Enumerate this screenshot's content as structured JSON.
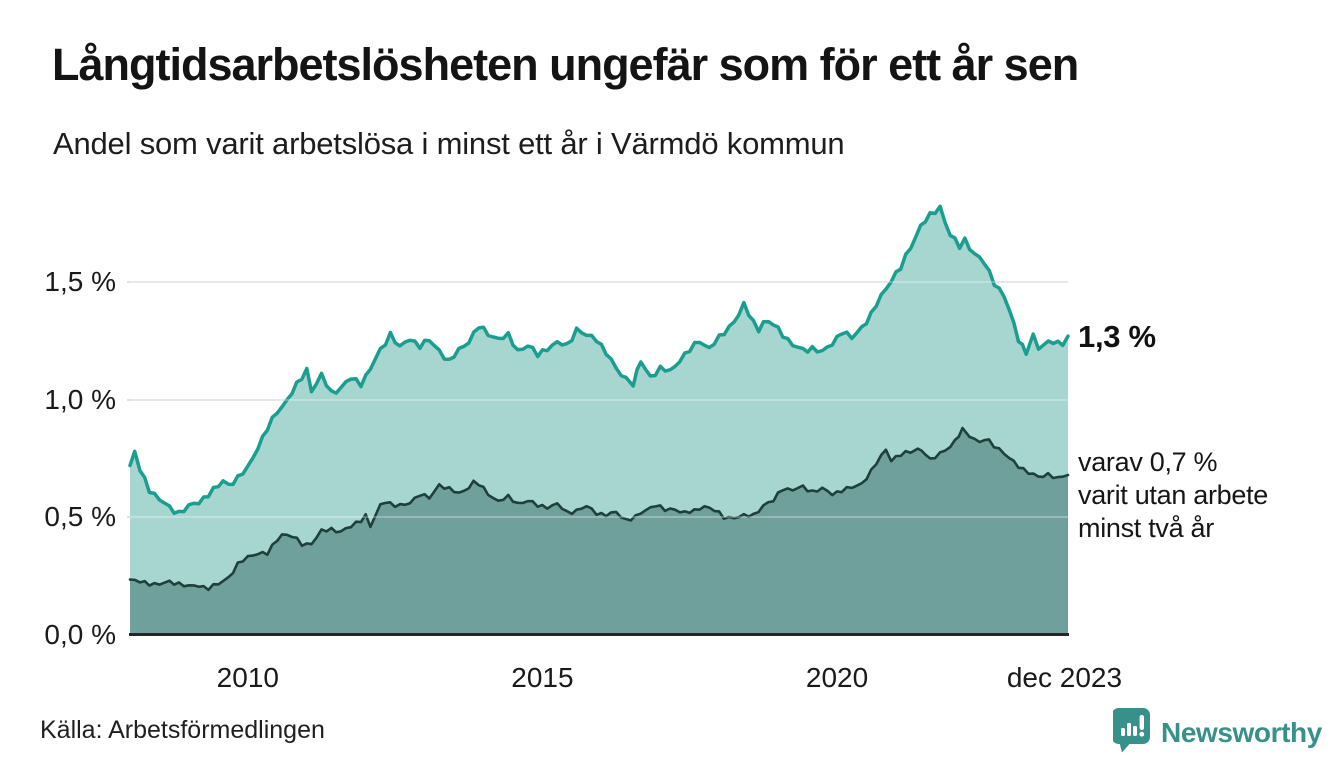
{
  "header": {
    "title": "Långtidsarbetslösheten ungefär som för ett år sen",
    "subtitle": "Andel som varit arbetslösa i minst ett år i Värmdö kommun"
  },
  "chart_data": {
    "type": "area",
    "title": "Långtidsarbetslösheten ungefär som för ett år sen",
    "subtitle": "Andel som varit arbetslösa i minst ett år i Värmdö kommun",
    "unit": "%",
    "grid": true,
    "x_range": [
      2008.0,
      2023.92
    ],
    "ylim": [
      0,
      1.85
    ],
    "y_ticks": [
      {
        "label": "1,5 %",
        "value": 1.5
      },
      {
        "label": "1,0 %",
        "value": 1.0
      },
      {
        "label": "0,5 %",
        "value": 0.5
      },
      {
        "label": "0,0 %",
        "value": 0.0
      }
    ],
    "x_ticks": [
      {
        "label": "2010",
        "value": 2010
      },
      {
        "label": "2015",
        "value": 2015
      },
      {
        "label": "2020",
        "value": 2020
      },
      {
        "label": "dec 2023",
        "value": 2023.86
      }
    ],
    "series": [
      {
        "name": "Arbetslösa minst ett år",
        "end_label": "1,3 %",
        "end_value": 1.3,
        "line_color": "#1b9e8f",
        "fill_color": "#a7d6d0",
        "points": [
          [
            2008.0,
            0.72
          ],
          [
            2008.08,
            0.775
          ],
          [
            2008.17,
            0.7
          ],
          [
            2008.33,
            0.62
          ],
          [
            2008.5,
            0.575
          ],
          [
            2008.67,
            0.54
          ],
          [
            2008.83,
            0.52
          ],
          [
            2009.0,
            0.545
          ],
          [
            2009.17,
            0.565
          ],
          [
            2009.33,
            0.6
          ],
          [
            2009.5,
            0.63
          ],
          [
            2009.58,
            0.655
          ],
          [
            2009.67,
            0.64
          ],
          [
            2009.83,
            0.665
          ],
          [
            2010.0,
            0.71
          ],
          [
            2010.17,
            0.8
          ],
          [
            2010.33,
            0.875
          ],
          [
            2010.5,
            0.95
          ],
          [
            2010.67,
            1.0
          ],
          [
            2010.83,
            1.06
          ],
          [
            2011.0,
            1.13
          ],
          [
            2011.08,
            1.04
          ],
          [
            2011.25,
            1.1
          ],
          [
            2011.42,
            1.03
          ],
          [
            2011.58,
            1.05
          ],
          [
            2011.75,
            1.09
          ],
          [
            2011.92,
            1.07
          ],
          [
            2012.08,
            1.13
          ],
          [
            2012.25,
            1.21
          ],
          [
            2012.42,
            1.28
          ],
          [
            2012.58,
            1.22
          ],
          [
            2012.75,
            1.26
          ],
          [
            2012.92,
            1.23
          ],
          [
            2013.08,
            1.25
          ],
          [
            2013.25,
            1.21
          ],
          [
            2013.42,
            1.16
          ],
          [
            2013.58,
            1.21
          ],
          [
            2013.75,
            1.25
          ],
          [
            2013.92,
            1.31
          ],
          [
            2014.08,
            1.28
          ],
          [
            2014.25,
            1.26
          ],
          [
            2014.42,
            1.27
          ],
          [
            2014.58,
            1.21
          ],
          [
            2014.75,
            1.23
          ],
          [
            2014.92,
            1.19
          ],
          [
            2015.08,
            1.22
          ],
          [
            2015.25,
            1.24
          ],
          [
            2015.42,
            1.23
          ],
          [
            2015.58,
            1.3
          ],
          [
            2015.75,
            1.27
          ],
          [
            2015.92,
            1.26
          ],
          [
            2016.08,
            1.2
          ],
          [
            2016.25,
            1.13
          ],
          [
            2016.42,
            1.09
          ],
          [
            2016.54,
            1.07
          ],
          [
            2016.67,
            1.16
          ],
          [
            2016.83,
            1.1
          ],
          [
            2017.0,
            1.13
          ],
          [
            2017.17,
            1.12
          ],
          [
            2017.33,
            1.17
          ],
          [
            2017.5,
            1.21
          ],
          [
            2017.67,
            1.25
          ],
          [
            2017.83,
            1.22
          ],
          [
            2018.0,
            1.26
          ],
          [
            2018.17,
            1.31
          ],
          [
            2018.33,
            1.36
          ],
          [
            2018.42,
            1.4
          ],
          [
            2018.58,
            1.33
          ],
          [
            2018.67,
            1.3
          ],
          [
            2018.75,
            1.33
          ],
          [
            2018.92,
            1.32
          ],
          [
            2019.08,
            1.28
          ],
          [
            2019.25,
            1.23
          ],
          [
            2019.42,
            1.21
          ],
          [
            2019.58,
            1.22
          ],
          [
            2019.75,
            1.2
          ],
          [
            2019.92,
            1.24
          ],
          [
            2020.08,
            1.29
          ],
          [
            2020.25,
            1.26
          ],
          [
            2020.42,
            1.31
          ],
          [
            2020.58,
            1.36
          ],
          [
            2020.75,
            1.44
          ],
          [
            2020.92,
            1.51
          ],
          [
            2021.08,
            1.56
          ],
          [
            2021.25,
            1.65
          ],
          [
            2021.42,
            1.74
          ],
          [
            2021.58,
            1.78
          ],
          [
            2021.75,
            1.82
          ],
          [
            2021.83,
            1.76
          ],
          [
            2021.92,
            1.7
          ],
          [
            2022.08,
            1.65
          ],
          [
            2022.17,
            1.68
          ],
          [
            2022.33,
            1.62
          ],
          [
            2022.5,
            1.58
          ],
          [
            2022.67,
            1.5
          ],
          [
            2022.83,
            1.44
          ],
          [
            2022.92,
            1.38
          ],
          [
            2023.08,
            1.26
          ],
          [
            2023.21,
            1.2
          ],
          [
            2023.33,
            1.27
          ],
          [
            2023.42,
            1.21
          ],
          [
            2023.5,
            1.24
          ],
          [
            2023.67,
            1.25
          ],
          [
            2023.83,
            1.23
          ],
          [
            2023.92,
            1.27
          ]
        ]
      },
      {
        "name": "Varit utan arbete minst två år",
        "annotation_lines": [
          "varav 0,7 %",
          "varit utan arbete",
          "minst två år"
        ],
        "end_value": 0.7,
        "line_color": "#1e403d",
        "fill_color": "#70a09b",
        "points": [
          [
            2008.0,
            0.235
          ],
          [
            2008.17,
            0.225
          ],
          [
            2008.33,
            0.22
          ],
          [
            2008.5,
            0.215
          ],
          [
            2008.67,
            0.225
          ],
          [
            2008.83,
            0.22
          ],
          [
            2009.0,
            0.205
          ],
          [
            2009.17,
            0.21
          ],
          [
            2009.33,
            0.2
          ],
          [
            2009.5,
            0.215
          ],
          [
            2009.67,
            0.245
          ],
          [
            2009.83,
            0.3
          ],
          [
            2010.0,
            0.33
          ],
          [
            2010.17,
            0.35
          ],
          [
            2010.33,
            0.345
          ],
          [
            2010.5,
            0.405
          ],
          [
            2010.58,
            0.43
          ],
          [
            2010.75,
            0.42
          ],
          [
            2010.92,
            0.385
          ],
          [
            2011.08,
            0.39
          ],
          [
            2011.25,
            0.44
          ],
          [
            2011.42,
            0.45
          ],
          [
            2011.58,
            0.44
          ],
          [
            2011.75,
            0.46
          ],
          [
            2011.92,
            0.49
          ],
          [
            2012.0,
            0.51
          ],
          [
            2012.08,
            0.46
          ],
          [
            2012.25,
            0.55
          ],
          [
            2012.33,
            0.57
          ],
          [
            2012.5,
            0.55
          ],
          [
            2012.67,
            0.55
          ],
          [
            2012.83,
            0.58
          ],
          [
            2012.92,
            0.6
          ],
          [
            2013.08,
            0.58
          ],
          [
            2013.25,
            0.64
          ],
          [
            2013.42,
            0.62
          ],
          [
            2013.58,
            0.6
          ],
          [
            2013.75,
            0.63
          ],
          [
            2013.83,
            0.65
          ],
          [
            2013.92,
            0.64
          ],
          [
            2014.08,
            0.6
          ],
          [
            2014.25,
            0.57
          ],
          [
            2014.42,
            0.585
          ],
          [
            2014.58,
            0.56
          ],
          [
            2014.75,
            0.57
          ],
          [
            2014.92,
            0.55
          ],
          [
            2015.08,
            0.545
          ],
          [
            2015.25,
            0.555
          ],
          [
            2015.42,
            0.52
          ],
          [
            2015.58,
            0.53
          ],
          [
            2015.75,
            0.545
          ],
          [
            2015.92,
            0.52
          ],
          [
            2016.08,
            0.51
          ],
          [
            2016.25,
            0.52
          ],
          [
            2016.42,
            0.49
          ],
          [
            2016.58,
            0.5
          ],
          [
            2016.75,
            0.53
          ],
          [
            2016.92,
            0.555
          ],
          [
            2017.08,
            0.53
          ],
          [
            2017.25,
            0.535
          ],
          [
            2017.42,
            0.52
          ],
          [
            2017.58,
            0.525
          ],
          [
            2017.75,
            0.55
          ],
          [
            2017.92,
            0.53
          ],
          [
            2018.08,
            0.5
          ],
          [
            2018.25,
            0.5
          ],
          [
            2018.42,
            0.505
          ],
          [
            2018.58,
            0.51
          ],
          [
            2018.75,
            0.55
          ],
          [
            2018.92,
            0.57
          ],
          [
            2019.0,
            0.6
          ],
          [
            2019.08,
            0.625
          ],
          [
            2019.25,
            0.615
          ],
          [
            2019.42,
            0.63
          ],
          [
            2019.58,
            0.61
          ],
          [
            2019.75,
            0.62
          ],
          [
            2019.92,
            0.6
          ],
          [
            2020.08,
            0.615
          ],
          [
            2020.25,
            0.625
          ],
          [
            2020.42,
            0.645
          ],
          [
            2020.58,
            0.695
          ],
          [
            2020.75,
            0.76
          ],
          [
            2020.83,
            0.79
          ],
          [
            2020.92,
            0.745
          ],
          [
            2021.08,
            0.765
          ],
          [
            2021.25,
            0.78
          ],
          [
            2021.37,
            0.795
          ],
          [
            2021.5,
            0.77
          ],
          [
            2021.58,
            0.74
          ],
          [
            2021.75,
            0.775
          ],
          [
            2021.92,
            0.8
          ],
          [
            2022.0,
            0.82
          ],
          [
            2022.13,
            0.875
          ],
          [
            2022.25,
            0.85
          ],
          [
            2022.42,
            0.815
          ],
          [
            2022.5,
            0.83
          ],
          [
            2022.58,
            0.825
          ],
          [
            2022.75,
            0.79
          ],
          [
            2022.92,
            0.75
          ],
          [
            2023.08,
            0.72
          ],
          [
            2023.25,
            0.69
          ],
          [
            2023.42,
            0.67
          ],
          [
            2023.58,
            0.685
          ],
          [
            2023.75,
            0.665
          ],
          [
            2023.92,
            0.68
          ]
        ]
      }
    ]
  },
  "footer": {
    "source": "Källa: Arbetsförmedlingen",
    "logo_text": "Newsworthy"
  },
  "colors": {
    "accent_teal": "#1b9e8f",
    "fill_light": "#a7d6d0",
    "fill_dark": "#70a09b",
    "line_dark": "#1e403d",
    "grid": "#e0e0e0",
    "axis": "#262626",
    "logo_teal": "#37918a",
    "text": "#141414"
  }
}
